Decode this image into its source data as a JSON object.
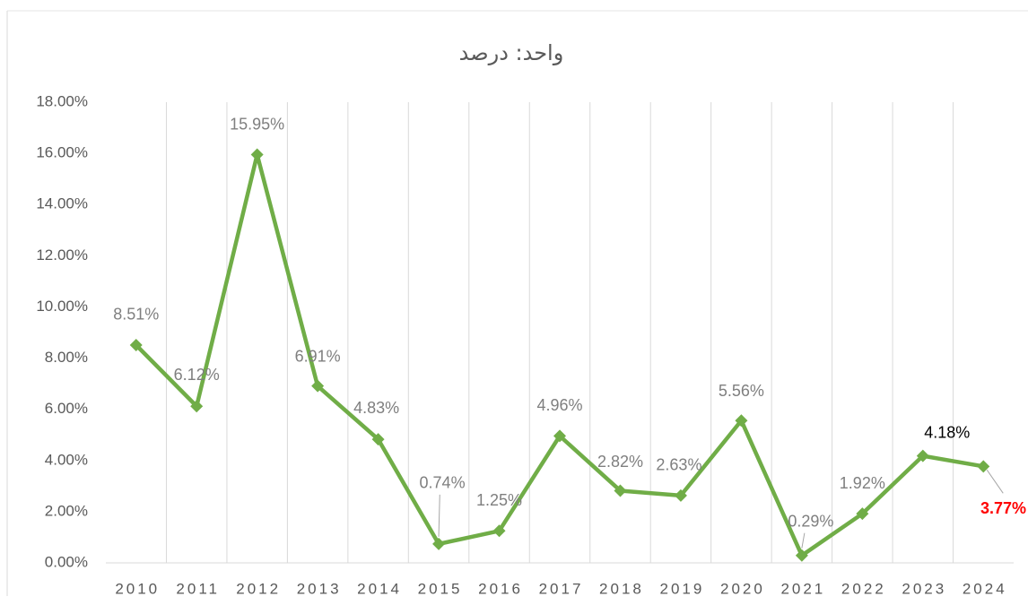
{
  "chart_data": {
    "type": "line",
    "title": "واحد: درصد",
    "categories": [
      "2010",
      "2011",
      "2012",
      "2013",
      "2014",
      "2015",
      "2016",
      "2017",
      "2018",
      "2019",
      "2020",
      "2021",
      "2022",
      "2023",
      "2024"
    ],
    "series": [
      {
        "name": "درصد",
        "color": "#70ad47",
        "values": [
          8.51,
          6.12,
          15.95,
          6.91,
          4.83,
          0.74,
          1.25,
          4.96,
          2.82,
          2.63,
          5.56,
          0.29,
          1.92,
          4.18,
          3.77
        ],
        "value_labels": [
          "8.51%",
          "6.12%",
          "15.95%",
          "6.91%",
          "4.83%",
          "0.74%",
          "1.25%",
          "4.96%",
          "2.82%",
          "2.63%",
          "5.56%",
          "0.29%",
          "1.92%",
          "4.18%",
          "3.77%"
        ],
        "value_label_colors": [
          "#7f7f7f",
          "#7f7f7f",
          "#7f7f7f",
          "#7f7f7f",
          "#7f7f7f",
          "#7f7f7f",
          "#7f7f7f",
          "#7f7f7f",
          "#7f7f7f",
          "#7f7f7f",
          "#7f7f7f",
          "#7f7f7f",
          "#7f7f7f",
          "#000000",
          "#ff0000"
        ]
      }
    ],
    "ylim": [
      0,
      18
    ],
    "yticks": [
      {
        "value": 0,
        "label": "0.00%"
      },
      {
        "value": 2,
        "label": "2.00%"
      },
      {
        "value": 4,
        "label": "4.00%"
      },
      {
        "value": 6,
        "label": "6.00%"
      },
      {
        "value": 8,
        "label": "8.00%"
      },
      {
        "value": 10,
        "label": "10.00%"
      },
      {
        "value": 12,
        "label": "12.00%"
      },
      {
        "value": 14,
        "label": "14.00%"
      },
      {
        "value": 16,
        "label": "16.00%"
      },
      {
        "value": 18,
        "label": "18.00%"
      }
    ],
    "grid": "vertical"
  }
}
